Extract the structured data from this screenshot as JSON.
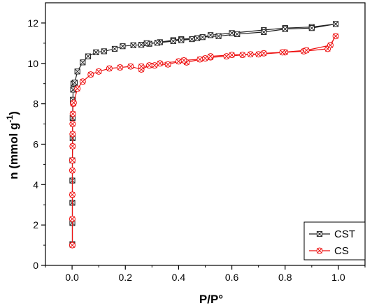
{
  "chart_data": {
    "type": "line",
    "title": "",
    "xlabel": "P/P°",
    "ylabel_main": "n (mmol g",
    "ylabel_sup": "-1",
    "ylabel_tail": ")",
    "xlim": [
      -0.1,
      1.1
    ],
    "ylim": [
      0,
      13
    ],
    "xticks": [
      0.0,
      0.2,
      0.4,
      0.6,
      0.8,
      1.0
    ],
    "xtick_labels": [
      "0.0",
      "0.2",
      "0.4",
      "0.6",
      "0.8",
      "1.0"
    ],
    "yticks": [
      0,
      2,
      4,
      6,
      8,
      10,
      12
    ],
    "ytick_labels": [
      "0",
      "2",
      "4",
      "6",
      "8",
      "10",
      "12"
    ],
    "grid": false,
    "legend_position": "bottom-right",
    "series": [
      {
        "name": "CST",
        "color": "#222222",
        "marker": "square-x",
        "x": [
          0.001,
          0.001,
          0.001,
          0.001,
          0.001,
          0.002,
          0.002,
          0.003,
          0.004,
          0.005,
          0.01,
          0.02,
          0.04,
          0.06,
          0.09,
          0.12,
          0.16,
          0.19,
          0.23,
          0.26,
          0.29,
          0.33,
          0.38,
          0.41,
          0.47,
          0.52,
          0.6,
          0.72,
          0.8,
          0.9,
          0.99,
          0.9,
          0.8,
          0.72,
          0.62,
          0.55,
          0.49,
          0.45,
          0.41,
          0.38,
          0.32,
          0.28
        ],
        "y": [
          1.05,
          2.1,
          3.1,
          4.2,
          5.2,
          6.3,
          7.3,
          8.2,
          8.7,
          9.0,
          9.05,
          9.6,
          10.05,
          10.35,
          10.55,
          10.6,
          10.72,
          10.85,
          10.9,
          10.92,
          10.97,
          11.05,
          11.15,
          11.2,
          11.25,
          11.4,
          11.5,
          11.65,
          11.75,
          11.8,
          11.95,
          11.75,
          11.7,
          11.55,
          11.45,
          11.35,
          11.3,
          11.2,
          11.15,
          11.1,
          11.02,
          11.0
        ]
      },
      {
        "name": "CS",
        "color": "#ee1111",
        "marker": "circle-x",
        "x": [
          0.001,
          0.001,
          0.001,
          0.001,
          0.001,
          0.002,
          0.002,
          0.002,
          0.003,
          0.004,
          0.006,
          0.02,
          0.04,
          0.07,
          0.1,
          0.14,
          0.18,
          0.22,
          0.26,
          0.29,
          0.33,
          0.4,
          0.43,
          0.5,
          0.52,
          0.58,
          0.64,
          0.7,
          0.8,
          0.87,
          0.96,
          0.99,
          0.97,
          0.88,
          0.79,
          0.72,
          0.67,
          0.6,
          0.52,
          0.48,
          0.42,
          0.36,
          0.31,
          0.26
        ],
        "y": [
          1.0,
          2.3,
          3.5,
          4.7,
          5.2,
          5.9,
          6.5,
          7.0,
          7.5,
          8.0,
          8.05,
          8.75,
          9.1,
          9.45,
          9.6,
          9.75,
          9.8,
          9.85,
          9.7,
          9.9,
          10.0,
          10.1,
          10.05,
          10.25,
          10.3,
          10.35,
          10.42,
          10.45,
          10.55,
          10.6,
          10.72,
          11.35,
          10.9,
          10.65,
          10.55,
          10.5,
          10.45,
          10.42,
          10.35,
          10.2,
          10.15,
          9.95,
          9.9,
          9.85
        ]
      }
    ]
  }
}
